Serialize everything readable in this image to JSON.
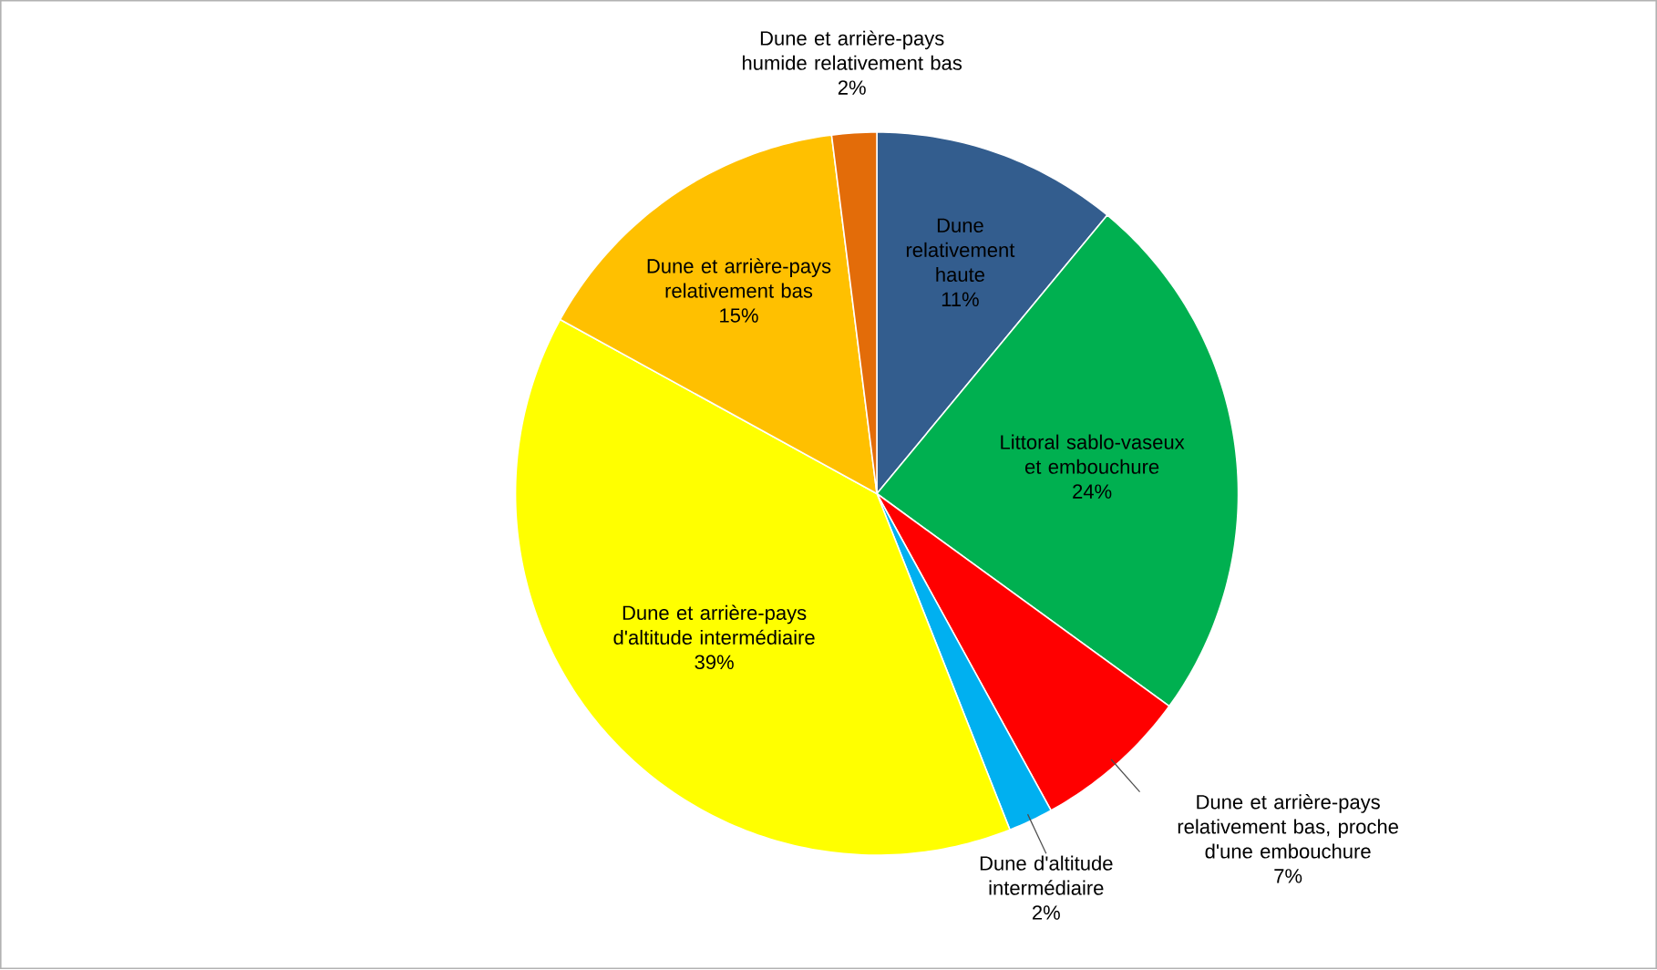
{
  "chart_data": {
    "type": "pie",
    "categories": [
      "Dune relativement haute",
      "Littoral sablo-vaseux et embouchure",
      "Dune et arrière-pays relativement bas, proche d'une embouchure",
      "Dune d'altitude intermédiaire",
      "Dune et arrière-pays d'altitude intermédiaire",
      "Dune et arrière-pays relativement bas",
      "Dune et arrière-pays humide relativement bas"
    ],
    "values": [
      11,
      24,
      7,
      2,
      39,
      15,
      2
    ],
    "value_labels": [
      "11%",
      "24%",
      "7%",
      "2%",
      "39%",
      "15%",
      "2%"
    ],
    "colors": [
      "#335d8e",
      "#00b050",
      "#ff0000",
      "#00b0f0",
      "#ffff00",
      "#ffc000",
      "#e36c09"
    ]
  }
}
